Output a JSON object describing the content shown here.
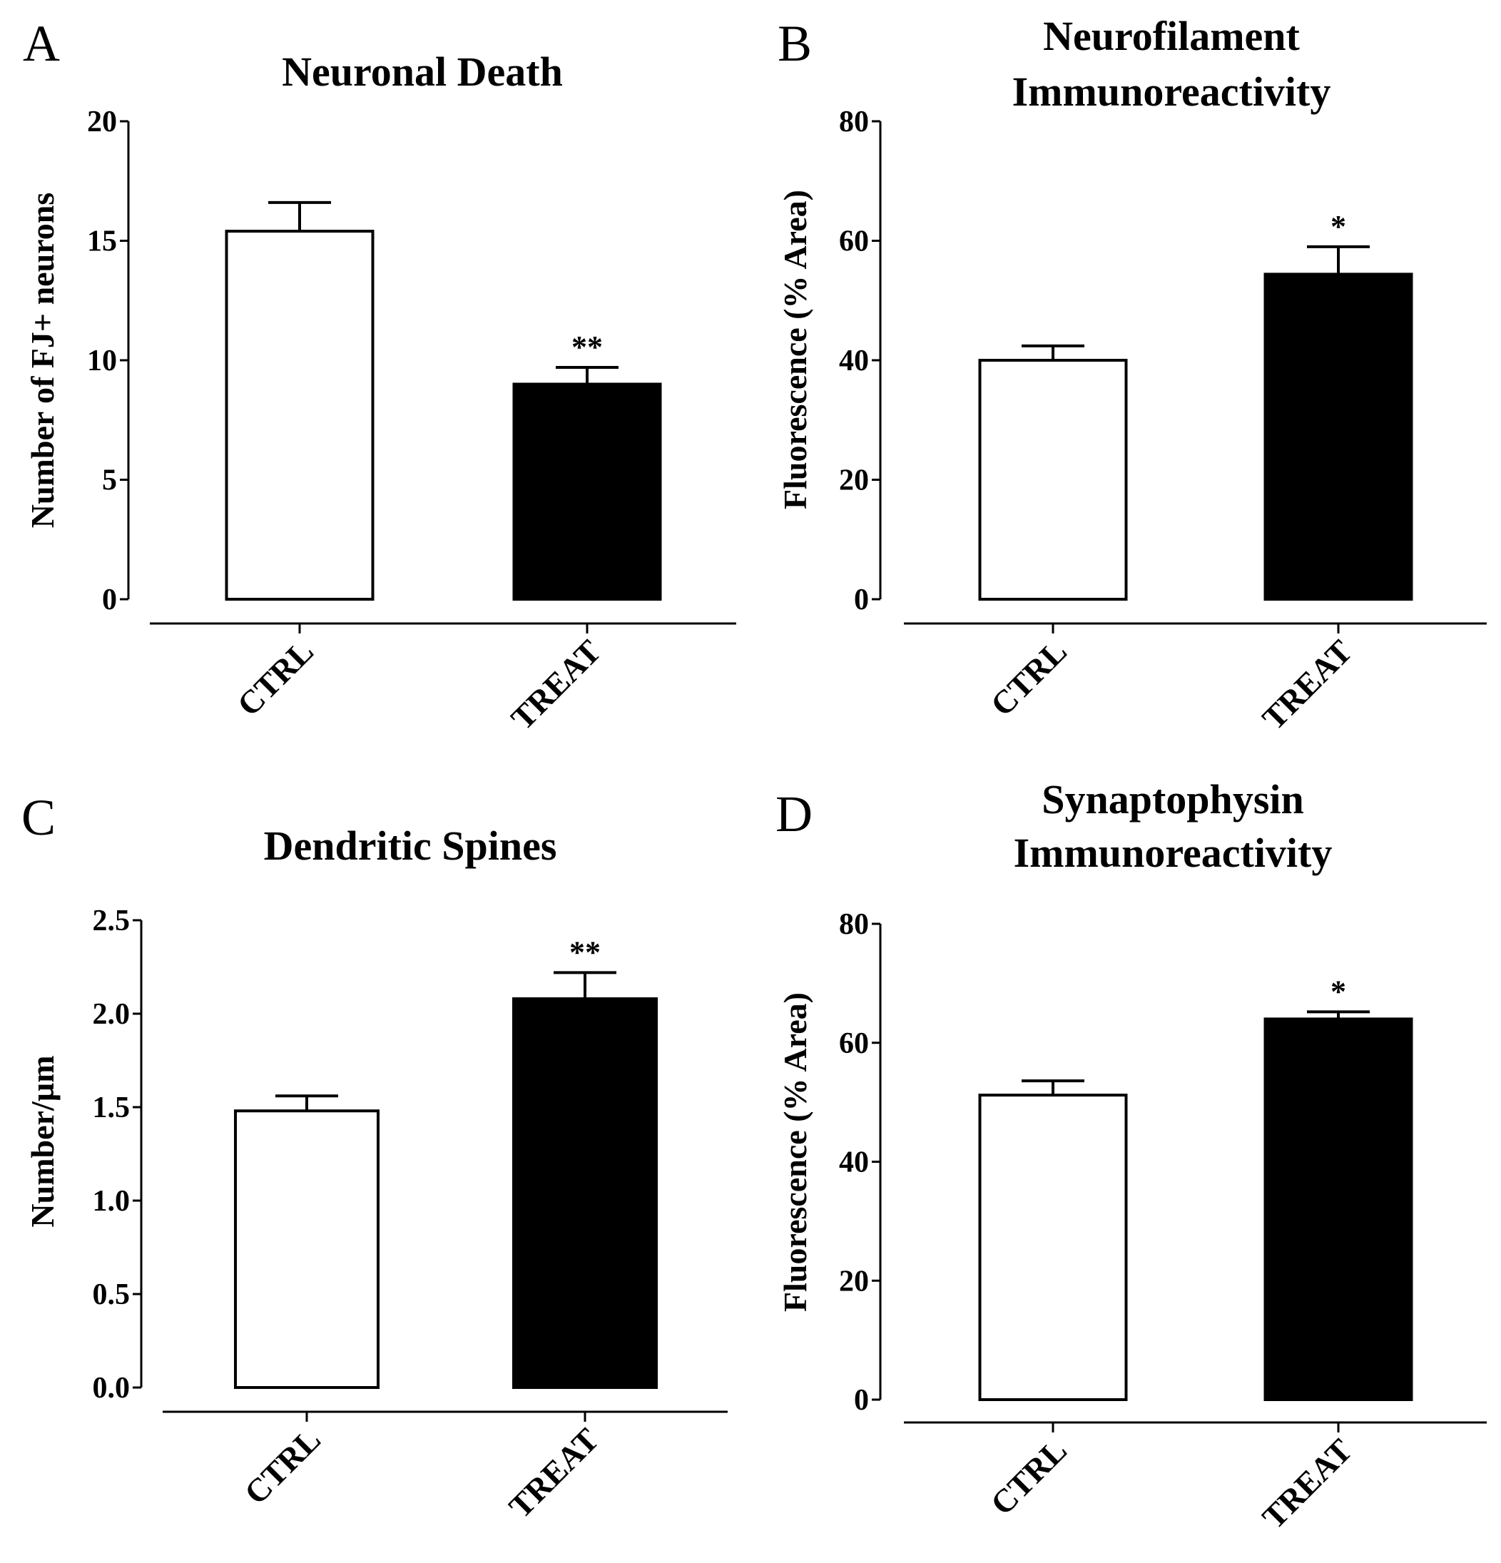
{
  "chart_data": [
    {
      "panel": "A",
      "type": "bar",
      "title": [
        "Neuronal Death"
      ],
      "xlabel": "",
      "ylabel": "Number of FJ+ neurons",
      "ylim": [
        0,
        20
      ],
      "yticks": [
        "0",
        "5",
        "10",
        "15",
        "20"
      ],
      "categories": [
        "CTRL",
        "TREAT"
      ],
      "values": [
        15.4,
        9.0
      ],
      "errors": [
        1.2,
        0.7
      ],
      "colors": [
        "#ffffff",
        "#000000"
      ],
      "significance": [
        "",
        "**"
      ]
    },
    {
      "panel": "B",
      "type": "bar",
      "title": [
        "Neurofilament",
        "Immunoreactivity"
      ],
      "xlabel": "",
      "ylabel": "Fluorescence (% Area)",
      "ylim": [
        0,
        80
      ],
      "yticks": [
        "0",
        "20",
        "40",
        "60",
        "80"
      ],
      "categories": [
        "CTRL",
        "TREAT"
      ],
      "values": [
        40.0,
        54.4
      ],
      "errors": [
        2.4,
        4.6
      ],
      "colors": [
        "#ffffff",
        "#000000"
      ],
      "significance": [
        "",
        "*"
      ]
    },
    {
      "panel": "C",
      "type": "bar",
      "title": [
        "Dendritic Spines"
      ],
      "xlabel": "",
      "ylabel": "Number/µm",
      "ylim": [
        0,
        2.5
      ],
      "yticks": [
        "0.0",
        "0.5",
        "1.0",
        "1.5",
        "2.0",
        "2.5"
      ],
      "categories": [
        "CTRL",
        "TREAT"
      ],
      "values": [
        1.48,
        2.08
      ],
      "errors": [
        0.08,
        0.14
      ],
      "colors": [
        "#ffffff",
        "#000000"
      ],
      "significance": [
        "",
        "**"
      ]
    },
    {
      "panel": "D",
      "type": "bar",
      "title": [
        "Synaptophysin",
        "Immunoreactivity"
      ],
      "xlabel": "",
      "ylabel": "Fluorescence (% Area)",
      "ylim": [
        0,
        80
      ],
      "yticks": [
        "0",
        "20",
        "40",
        "60",
        "80"
      ],
      "categories": [
        "CTRL",
        "TREAT"
      ],
      "values": [
        51.2,
        64.0
      ],
      "errors": [
        2.4,
        1.2
      ],
      "colors": [
        "#ffffff",
        "#000000"
      ],
      "significance": [
        "",
        "*"
      ]
    }
  ]
}
